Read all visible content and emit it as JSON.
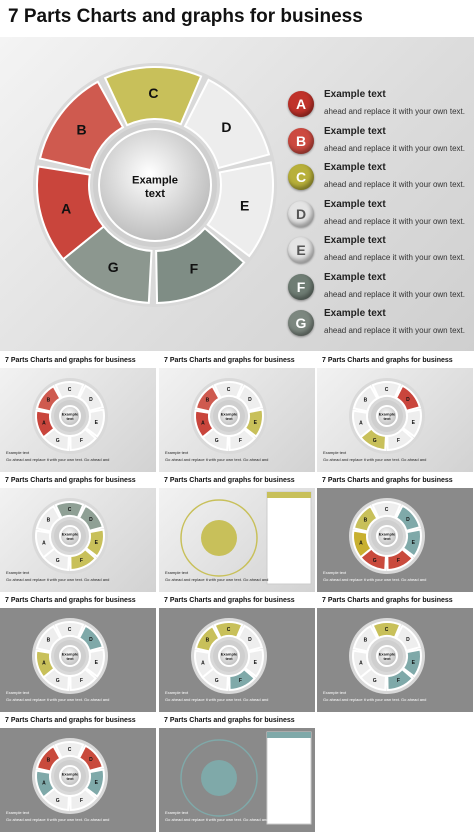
{
  "title": "7 Parts Charts and graphs for business",
  "center_label": "Example\ntext",
  "center_line1": "Example",
  "center_line2": "text",
  "segments": [
    {
      "letter": "A",
      "color": "#c9453c"
    },
    {
      "letter": "B",
      "color": "#cf5a4f"
    },
    {
      "letter": "C",
      "color": "#c8c05a"
    },
    {
      "letter": "D",
      "color": "#ededed"
    },
    {
      "letter": "E",
      "color": "#ededed"
    },
    {
      "letter": "F",
      "color": "#7f8d85"
    },
    {
      "letter": "G",
      "color": "#8c978f"
    }
  ],
  "legend": [
    {
      "letter": "A",
      "title": "Example text",
      "desc": "ahead and replace it with your own text.",
      "color": "#c0322a"
    },
    {
      "letter": "B",
      "title": "Example text",
      "desc": "ahead and replace it with your own text.",
      "color": "#cc4a40"
    },
    {
      "letter": "C",
      "title": "Example text",
      "desc": "ahead and replace it with your own text.",
      "color": "#b8b03a"
    },
    {
      "letter": "D",
      "title": "Example text",
      "desc": "ahead and replace it with your own text.",
      "color": "#e4e4e4"
    },
    {
      "letter": "E",
      "title": "Example text",
      "desc": "ahead and replace it with your own text.",
      "color": "#e4e4e4"
    },
    {
      "letter": "F",
      "title": "Example text",
      "desc": "ahead and replace it with your own text.",
      "color": "#6f7d74"
    },
    {
      "letter": "G",
      "title": "Example text",
      "desc": "ahead and replace it with your own text.",
      "color": "#7c877f"
    }
  ],
  "thumbnails": [
    {
      "title": "7 Parts Charts and graphs for business",
      "theme": "light"
    },
    {
      "title": "7 Parts Charts and graphs for business",
      "theme": "light"
    },
    {
      "title": "7 Parts Charts and graphs for business",
      "theme": "light"
    },
    {
      "title": "7 Parts Charts and graphs for business",
      "theme": "light"
    },
    {
      "title": "7 Parts Charts and graphs for business",
      "theme": "light"
    },
    {
      "title": "7 Parts Charts and graphs for business",
      "theme": "dark"
    },
    {
      "title": "7 Parts Charts and graphs for business",
      "theme": "dark"
    },
    {
      "title": "7 Parts Charts and graphs for business",
      "theme": "dark"
    },
    {
      "title": "7 Parts Charts and graphs for business",
      "theme": "dark"
    },
    {
      "title": "7 Parts Charts and graphs for business",
      "theme": "dark"
    },
    {
      "title": "7 Parts Charts and graphs for business",
      "theme": "dark"
    }
  ],
  "thumb_example": "Example text",
  "thumb_desc": "Go ahead and replace it with your own text. Go ahead and"
}
